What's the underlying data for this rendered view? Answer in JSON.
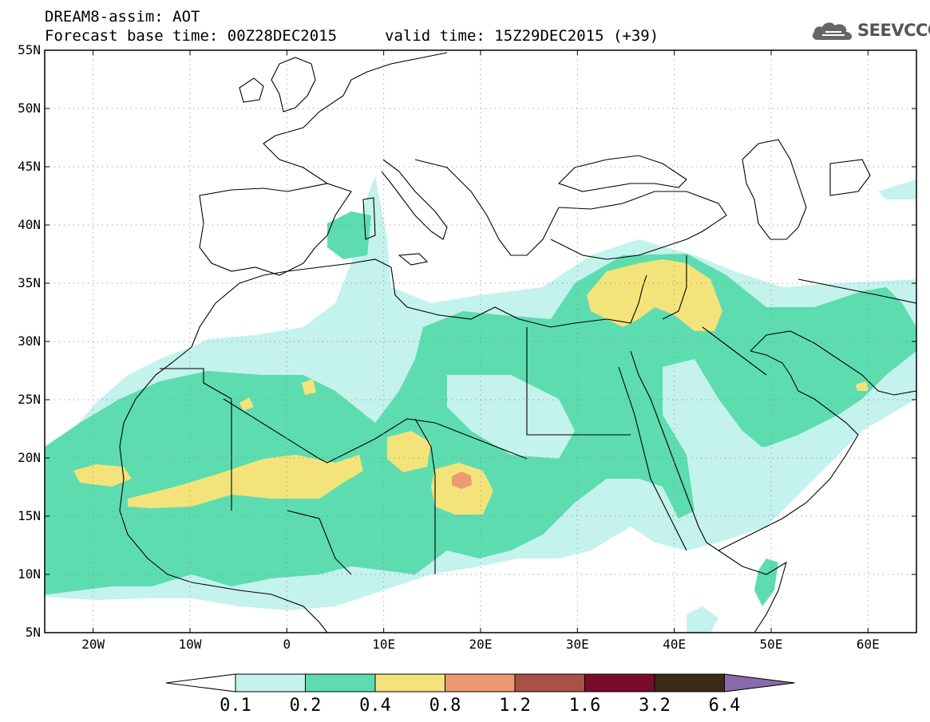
{
  "header": {
    "line1": "DREAM8-assim: AOT",
    "line2": "Forecast base time: 00Z28DEC2015",
    "valid": "valid time: 15Z29DEC2015 (+39)",
    "logo": "SEEVCCC"
  },
  "axes": {
    "lat_labels": [
      "55N",
      "50N",
      "45N",
      "40N",
      "35N",
      "30N",
      "25N",
      "20N",
      "15N",
      "10N",
      "5N"
    ],
    "lon_labels": [
      "20W",
      "10W",
      "0",
      "10E",
      "20E",
      "30E",
      "40E",
      "50E",
      "60E"
    ]
  },
  "colorbar": {
    "colors": [
      "#c4f2ec",
      "#5ddcb0",
      "#f4e37a",
      "#ec9a72",
      "#a85246",
      "#7a0c2a",
      "#3d2a18",
      "#8a6aa8"
    ],
    "under_color": "#ffffff",
    "labels": [
      "0.1",
      "0.2",
      "0.4",
      "0.8",
      "1.2",
      "1.6",
      "3.2",
      "6.4"
    ]
  },
  "colors": {
    "frame": "#000000",
    "coast": "#000000",
    "grid": "#8a8a8a"
  }
}
